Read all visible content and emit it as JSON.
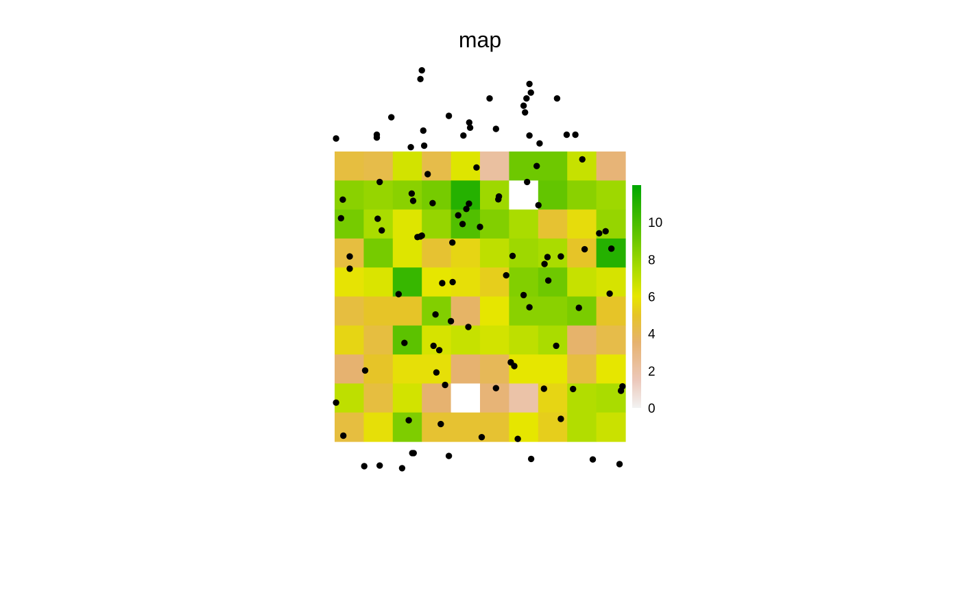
{
  "chart_data": {
    "type": "heatmap",
    "title": "map",
    "raster": {
      "nrows": 10,
      "ncols": 10,
      "values": [
        [
          4.5,
          4.3,
          6.5,
          4.3,
          6.2,
          2.2,
          9.0,
          9.0,
          6.8,
          3.3
        ],
        [
          8.3,
          8.0,
          8.3,
          8.8,
          11.0,
          7.8,
          null,
          9.3,
          8.3,
          7.8
        ],
        [
          8.8,
          7.5,
          6.2,
          8.0,
          9.8,
          8.5,
          7.5,
          4.8,
          5.7,
          8.0
        ],
        [
          4.5,
          8.8,
          6.2,
          4.8,
          5.5,
          7.0,
          7.8,
          7.5,
          5.0,
          11.0
        ],
        [
          5.9,
          6.3,
          10.5,
          6.0,
          5.8,
          5.3,
          8.5,
          9.0,
          6.8,
          6.4
        ],
        [
          4.5,
          5.0,
          5.0,
          8.5,
          3.7,
          6.0,
          8.3,
          8.3,
          8.7,
          5.0
        ],
        [
          5.5,
          4.5,
          9.5,
          6.4,
          6.8,
          6.5,
          7.0,
          7.5,
          3.6,
          4.3
        ],
        [
          3.5,
          5.0,
          5.8,
          5.8,
          3.5,
          4.0,
          6.0,
          6.0,
          4.5,
          6.0
        ],
        [
          7.0,
          4.5,
          6.5,
          3.5,
          null,
          3.3,
          2.0,
          5.5,
          7.3,
          7.5
        ],
        [
          4.5,
          5.8,
          8.6,
          4.8,
          4.8,
          4.8,
          6.0,
          5.3,
          7.3,
          6.7
        ]
      ]
    },
    "points": [
      [
        2.95,
        12.5
      ],
      [
        6.7,
        12.33
      ],
      [
        6.75,
        12.03
      ],
      [
        6.6,
        11.83
      ],
      [
        5.33,
        11.83
      ],
      [
        7.65,
        11.83
      ],
      [
        6.5,
        11.58
      ],
      [
        6.55,
        11.35
      ],
      [
        1.95,
        11.18
      ],
      [
        3.93,
        11.23
      ],
      [
        4.63,
        11.0
      ],
      [
        4.66,
        10.82
      ],
      [
        0.05,
        10.45
      ],
      [
        5.55,
        10.78
      ],
      [
        3.05,
        10.72
      ],
      [
        1.45,
        10.58
      ],
      [
        4.43,
        10.55
      ],
      [
        6.7,
        10.55
      ],
      [
        7.98,
        10.58
      ],
      [
        8.28,
        10.58
      ],
      [
        1.45,
        10.48
      ],
      [
        7.05,
        10.28
      ],
      [
        2.62,
        10.15
      ],
      [
        3.08,
        10.2
      ],
      [
        8.52,
        9.73
      ],
      [
        4.88,
        9.45
      ],
      [
        6.95,
        9.5
      ],
      [
        3.2,
        9.22
      ],
      [
        1.55,
        8.95
      ],
      [
        6.62,
        8.95
      ],
      [
        2.65,
        8.55
      ],
      [
        5.65,
        8.45
      ],
      [
        5.63,
        8.35
      ],
      [
        0.28,
        8.34
      ],
      [
        2.7,
        8.3
      ],
      [
        3.37,
        8.22
      ],
      [
        4.62,
        8.2
      ],
      [
        7.01,
        8.15
      ],
      [
        4.53,
        8.02
      ],
      [
        4.25,
        7.8
      ],
      [
        1.48,
        7.68
      ],
      [
        0.22,
        7.7
      ],
      [
        4.4,
        7.5
      ],
      [
        5.0,
        7.4
      ],
      [
        1.62,
        7.28
      ],
      [
        3.0,
        7.1
      ],
      [
        9.1,
        7.18
      ],
      [
        9.32,
        7.25
      ],
      [
        2.85,
        7.05
      ],
      [
        2.95,
        7.07
      ],
      [
        4.05,
        6.86
      ],
      [
        8.6,
        6.63
      ],
      [
        9.52,
        6.65
      ],
      [
        6.12,
        6.4
      ],
      [
        0.52,
        6.38
      ],
      [
        7.32,
        6.36
      ],
      [
        7.78,
        6.38
      ],
      [
        7.22,
        6.12
      ],
      [
        0.52,
        5.96
      ],
      [
        5.9,
        5.73
      ],
      [
        4.06,
        5.5
      ],
      [
        3.7,
        5.46
      ],
      [
        7.35,
        5.55
      ],
      [
        2.2,
        5.08
      ],
      [
        6.5,
        5.05
      ],
      [
        9.46,
        5.1
      ],
      [
        6.7,
        4.63
      ],
      [
        8.4,
        4.61
      ],
      [
        3.47,
        4.38
      ],
      [
        4.0,
        4.15
      ],
      [
        4.6,
        3.95
      ],
      [
        3.4,
        3.3
      ],
      [
        2.4,
        3.4
      ],
      [
        3.6,
        3.15
      ],
      [
        7.62,
        3.3
      ],
      [
        6.06,
        2.73
      ],
      [
        6.18,
        2.6
      ],
      [
        1.05,
        2.45
      ],
      [
        3.5,
        2.38
      ],
      [
        3.8,
        1.95
      ],
      [
        5.55,
        1.84
      ],
      [
        7.2,
        1.82
      ],
      [
        8.2,
        1.81
      ],
      [
        9.9,
        1.9
      ],
      [
        9.85,
        1.75
      ],
      [
        0.05,
        1.34
      ],
      [
        2.55,
        0.73
      ],
      [
        3.65,
        0.6
      ],
      [
        7.78,
        0.78
      ],
      [
        0.3,
        0.2
      ],
      [
        5.06,
        0.15
      ],
      [
        6.3,
        0.09
      ],
      [
        2.67,
        -0.4
      ],
      [
        2.72,
        -0.4
      ],
      [
        3.93,
        -0.5
      ],
      [
        1.02,
        -0.85
      ],
      [
        1.55,
        -0.83
      ],
      [
        6.76,
        -0.6
      ],
      [
        8.88,
        -0.62
      ],
      [
        9.8,
        -0.78
      ],
      [
        2.32,
        -0.92
      ],
      [
        3.0,
        12.8
      ]
    ],
    "legend": {
      "ticks": [
        0,
        2,
        4,
        6,
        8,
        10
      ],
      "range": [
        0,
        12
      ],
      "placement": "right"
    },
    "colors": {
      "palette": "terrain",
      "points": "#000000",
      "missing": "#ffffff"
    }
  }
}
